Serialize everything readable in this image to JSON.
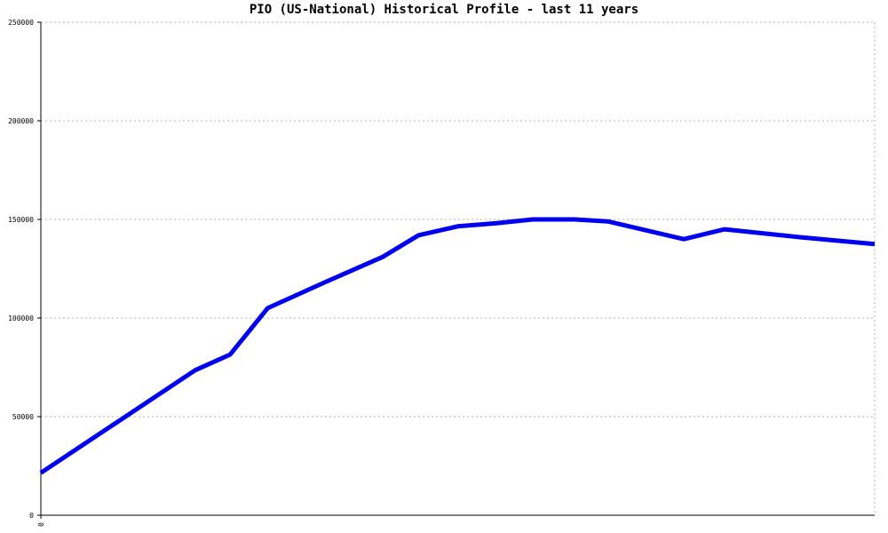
{
  "chart_data": {
    "type": "line",
    "title": "PIO (US-National) Historical Profile - last 11 years",
    "xlabel": "",
    "ylabel": "",
    "ylim": [
      0,
      250000
    ],
    "yticks": [
      "0",
      "50000",
      "100000",
      "150000",
      "200000",
      "250000"
    ],
    "xticks": [
      "0"
    ],
    "grid": true,
    "series_color": "#0000ee",
    "series": [
      {
        "values": [
          {
            "x": 0,
            "y": 21500
          },
          {
            "x": 0.185,
            "y": 73500
          },
          {
            "x": 0.227,
            "y": 81500
          },
          {
            "x": 0.272,
            "y": 105000
          },
          {
            "x": 0.34,
            "y": 118000
          },
          {
            "x": 0.41,
            "y": 131000
          },
          {
            "x": 0.453,
            "y": 142000
          },
          {
            "x": 0.5,
            "y": 146500
          },
          {
            "x": 0.545,
            "y": 148000
          },
          {
            "x": 0.59,
            "y": 150000
          },
          {
            "x": 0.64,
            "y": 150000
          },
          {
            "x": 0.68,
            "y": 149000
          },
          {
            "x": 0.771,
            "y": 140000
          },
          {
            "x": 0.82,
            "y": 145000
          },
          {
            "x": 0.91,
            "y": 141000
          },
          {
            "x": 1,
            "y": 137500
          }
        ]
      }
    ]
  }
}
